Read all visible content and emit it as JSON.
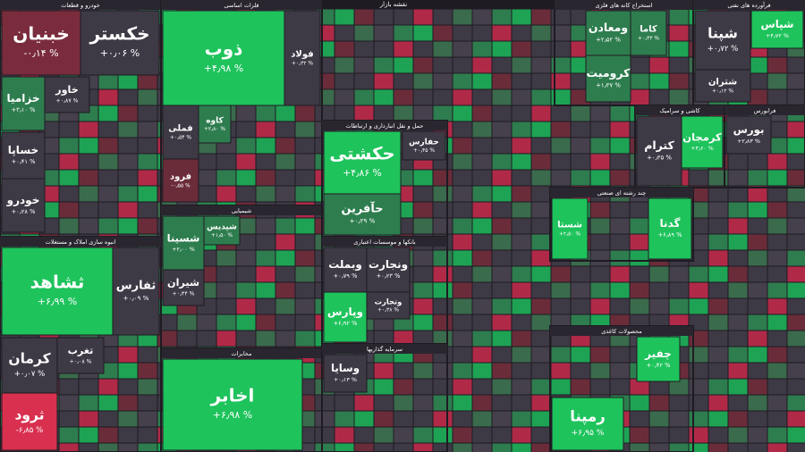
{
  "header": {
    "title": "نقشه بازار"
  },
  "sectors": [
    {
      "title": "خودرو و قطعات",
      "tiles": [
        {
          "name": "خبنیان",
          "change": "-۰٫۱۴ %",
          "color": "#7a2c3d"
        },
        {
          "name": "خکستر",
          "change": "+۰٫۰۶ %",
          "color": "#3e3a45"
        },
        {
          "name": "خزامیا",
          "change": "+۳٫۱۰ %",
          "color": "#2e7d4f"
        },
        {
          "name": "خاور",
          "change": "+۰٫۸۷ %",
          "color": "#3e3a45"
        },
        {
          "name": "خساپا",
          "change": "+۰٫۴۱ %",
          "color": "#3e3a45"
        },
        {
          "name": "خودرو",
          "change": "+۰٫۲۸ %",
          "color": "#3e3a45"
        }
      ]
    },
    {
      "title": "فلزات اساسی",
      "tiles": [
        {
          "name": "ذوب",
          "change": "+۴٫۹۸ %",
          "color": "#1ec35c"
        },
        {
          "name": "فولاد",
          "change": "+۰٫۳۲ %",
          "color": "#3e3a45"
        },
        {
          "name": "فملی",
          "change": "+۰٫۵۴ %",
          "color": "#3e3a45"
        },
        {
          "name": "فرود",
          "change": "-۰٫۵۵ %",
          "color": "#6b2c3a"
        },
        {
          "name": "کاوه",
          "change": "+۲٫۸۰ %",
          "color": "#2e7d4f"
        }
      ]
    },
    {
      "title": "شیمیایی",
      "tiles": [
        {
          "name": "شسینا",
          "change": "+۲٫۰۰ %",
          "color": "#2e7d4f"
        },
        {
          "name": "شیران",
          "change": "+۰٫۴۴ %",
          "color": "#3e3a45"
        },
        {
          "name": "شپدیس",
          "change": "+۱٫۵۰ %",
          "color": "#2e7d4f"
        }
      ]
    },
    {
      "title": "مخابرات",
      "tiles": [
        {
          "name": "اخابر",
          "change": "+۶٫۹۸ %",
          "color": "#1ec35c"
        }
      ]
    },
    {
      "title": "انبوه سازی املاک و مستغلات",
      "tiles": [
        {
          "name": "ثشاهد",
          "change": "+۶٫۹۹ %",
          "color": "#1ec35c"
        },
        {
          "name": "ثفارس",
          "change": "+۰٫۰۹ %",
          "color": "#3e3a45"
        },
        {
          "name": "کرمان",
          "change": "+۰٫۰۷ %",
          "color": "#3e3a45"
        },
        {
          "name": "ثرود",
          "change": "-۶٫۸۵ %",
          "color": "#d9304f"
        },
        {
          "name": "تغرب",
          "change": "+۰٫۰۸ %",
          "color": "#3e3a45"
        }
      ]
    },
    {
      "title": "حمل و نقل انبارداری و ارتباطات",
      "tiles": [
        {
          "name": "حکشتی",
          "change": "+۴٫۸۶ %",
          "color": "#1ec35c"
        },
        {
          "name": "حفارس",
          "change": "+۰٫۴۵ %",
          "color": "#3e3a45"
        },
        {
          "name": "حآفرین",
          "change": "+۰٫۲۹ %",
          "color": "#2e7d4f"
        }
      ]
    },
    {
      "title": "بانکها و موسسات اعتباری",
      "tiles": [
        {
          "name": "وبملت",
          "change": "+۰٫۷۹ %",
          "color": "#3e3a45"
        },
        {
          "name": "ونجارت",
          "change": "+۰٫۲۳ %",
          "color": "#3e3a45"
        },
        {
          "name": "وپارس",
          "change": "+۶٫۹۲ %",
          "color": "#1ec35c"
        },
        {
          "name": "وتجارت",
          "change": "+۰٫۳۸ %",
          "color": "#3e3a45"
        }
      ]
    },
    {
      "title": "سرمایه گذاریها",
      "tiles": [
        {
          "name": "وسایا",
          "change": "+۰٫۱۳ %",
          "color": "#3e3a45"
        }
      ]
    },
    {
      "title": "استخراج کانه های فلزی",
      "tiles": [
        {
          "name": "ومعادن",
          "change": "+۲٫۵۲ %",
          "color": "#2e7d4f"
        },
        {
          "name": "کاما",
          "change": "+۰٫۴۳ %",
          "color": "#2e7d4f"
        },
        {
          "name": "کرومیت",
          "change": "+۱٫۳۷ %",
          "color": "#2e7d4f"
        }
      ]
    },
    {
      "title": "فرآورده های نفتی",
      "tiles": [
        {
          "name": "شپنا",
          "change": "+۰٫۷۲ %",
          "color": "#3e3a45"
        },
        {
          "name": "شپاس",
          "change": "+۴٫۷۲ %",
          "color": "#1ec35c"
        },
        {
          "name": "شتران",
          "change": "+۰٫۱۲ %",
          "color": "#3e3a45"
        }
      ]
    },
    {
      "title": "کاشی و سرامیک",
      "tiles": [
        {
          "name": "کترام",
          "change": "+۰٫۳۵ %",
          "color": "#3e3a45"
        },
        {
          "name": "کرمجان",
          "change": "+۳٫۶۰ %",
          "color": "#1ec35c"
        }
      ]
    },
    {
      "title": "فرابورس",
      "tiles": [
        {
          "name": "بورس",
          "change": "+۲٫۸۳ %",
          "color": "#3e3a45"
        }
      ]
    },
    {
      "title": "چند رشته ای صنعتی",
      "tiles": [
        {
          "name": "شستا",
          "change": "+۲٫۵۰ %",
          "color": "#1ec35c"
        },
        {
          "name": "گدنا",
          "change": "+۶٫۸۹ %",
          "color": "#1ec35c"
        }
      ]
    },
    {
      "title": "محصولات کاغذی",
      "tiles": [
        {
          "name": "چفیر",
          "change": "+۰٫۴۲ %",
          "color": "#1ec35c"
        },
        {
          "name": "رمپنا",
          "change": "+۶٫۹۵ %",
          "color": "#1ec35c"
        }
      ]
    }
  ]
}
